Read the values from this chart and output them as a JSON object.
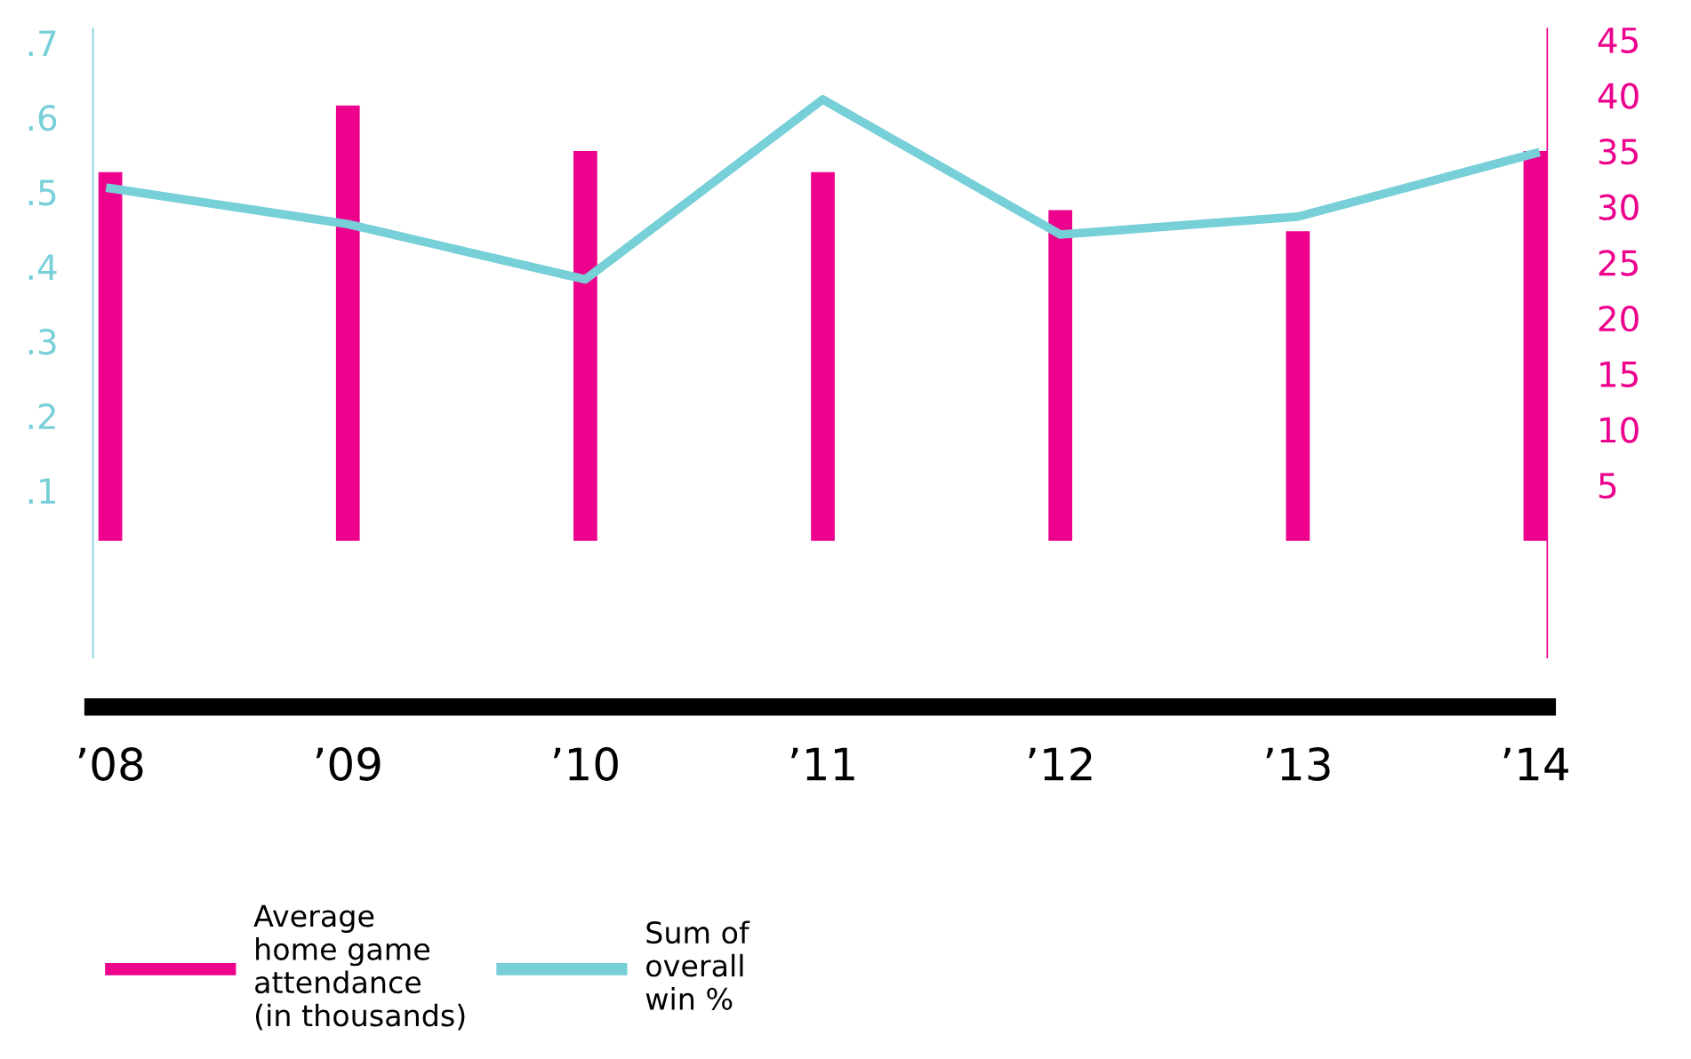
{
  "chart_data": {
    "type": "bar",
    "categories": [
      "’08",
      "’09",
      "’10",
      "’11",
      "’12",
      "’13",
      "’14"
    ],
    "series": [
      {
        "name": "Average\nhome game\nattendance\n(in thousands)",
        "axis": "y2",
        "color": "#ec008c",
        "values": [
          33.1,
          39.1,
          35.0,
          33.1,
          29.7,
          27.8,
          35.0
        ]
      },
      {
        "name": "Sum of\noverall\nwin %",
        "type": "line",
        "axis": "y",
        "color": "#77cfd8",
        "values": [
          0.505,
          0.457,
          0.383,
          0.624,
          0.443,
          0.467,
          0.552
        ]
      }
    ],
    "ylim": [
      -0.124,
      0.719
    ],
    "yticks": [
      {
        "value": 0.1,
        "label": ".1"
      },
      {
        "value": 0.2,
        "label": ".2"
      },
      {
        "value": 0.3,
        "label": ".3"
      },
      {
        "value": 0.4,
        "label": ".4"
      },
      {
        "value": 0.5,
        "label": ".5"
      },
      {
        "value": 0.6,
        "label": ".6"
      },
      {
        "value": 0.7,
        "label": ".7"
      }
    ],
    "y2lim": [
      -10.5,
      46
    ],
    "y2ticks": [
      5,
      10,
      15,
      20,
      25,
      30,
      35,
      40,
      45
    ],
    "legend": "bottom left",
    "grid": false
  }
}
